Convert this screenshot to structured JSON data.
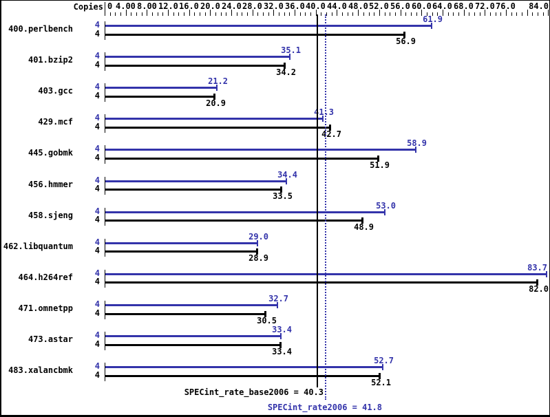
{
  "chart_data": {
    "type": "bar",
    "orientation": "horizontal",
    "copies_column_header": "Copies",
    "xlim": [
      0,
      84
    ],
    "minor_tick_step": 1,
    "major_tick_step": 4,
    "x_tick_values": [
      0,
      4,
      8,
      12,
      16,
      20,
      24,
      28,
      32,
      36,
      40,
      44,
      48,
      52,
      56,
      60,
      64,
      68,
      72,
      76,
      84
    ],
    "x_tick_labels": [
      "0",
      "4.00",
      "8.00",
      "12.0",
      "16.0",
      "20.0",
      "24.0",
      "28.0",
      "32.0",
      "36.0",
      "40.0",
      "44.0",
      "48.0",
      "52.0",
      "56.0",
      "60.0",
      "64.0",
      "68.0",
      "72.0",
      "76.0",
      "84.0"
    ],
    "series_colors": {
      "peak": "#3333aa",
      "base": "#000000"
    },
    "benchmarks": [
      {
        "name": "400.perlbench",
        "copies_peak": 4,
        "copies_base": 4,
        "peak": 61.9,
        "base": 56.9
      },
      {
        "name": "401.bzip2",
        "copies_peak": 4,
        "copies_base": 4,
        "peak": 35.1,
        "base": 34.2
      },
      {
        "name": "403.gcc",
        "copies_peak": 4,
        "copies_base": 4,
        "peak": 21.2,
        "base": 20.9
      },
      {
        "name": "429.mcf",
        "copies_peak": 4,
        "copies_base": 4,
        "peak": 41.3,
        "base": 42.7
      },
      {
        "name": "445.gobmk",
        "copies_peak": 4,
        "copies_base": 4,
        "peak": 58.9,
        "base": 51.9
      },
      {
        "name": "456.hmmer",
        "copies_peak": 4,
        "copies_base": 4,
        "peak": 34.4,
        "base": 33.5
      },
      {
        "name": "458.sjeng",
        "copies_peak": 4,
        "copies_base": 4,
        "peak": 53.0,
        "base": 48.9
      },
      {
        "name": "462.libquantum",
        "copies_peak": 4,
        "copies_base": 4,
        "peak": 29.0,
        "base": 28.9
      },
      {
        "name": "464.h264ref",
        "copies_peak": 4,
        "copies_base": 4,
        "peak": 83.7,
        "base": 82.0
      },
      {
        "name": "471.omnetpp",
        "copies_peak": 4,
        "copies_base": 4,
        "peak": 32.7,
        "base": 30.5
      },
      {
        "name": "473.astar",
        "copies_peak": 4,
        "copies_base": 4,
        "peak": 33.4,
        "base": 33.4
      },
      {
        "name": "483.xalancbmk",
        "copies_peak": 4,
        "copies_base": 4,
        "peak": 52.7,
        "base": 52.1
      }
    ],
    "reference_lines": [
      {
        "name": "base",
        "label": "SPECint_rate_base2006 = 40.3",
        "value": 40.3,
        "style": "solid",
        "color": "#000000"
      },
      {
        "name": "peak",
        "label": "SPECint_rate2006 = 41.8",
        "value": 41.8,
        "style": "dotted",
        "color": "#3333aa"
      }
    ]
  }
}
